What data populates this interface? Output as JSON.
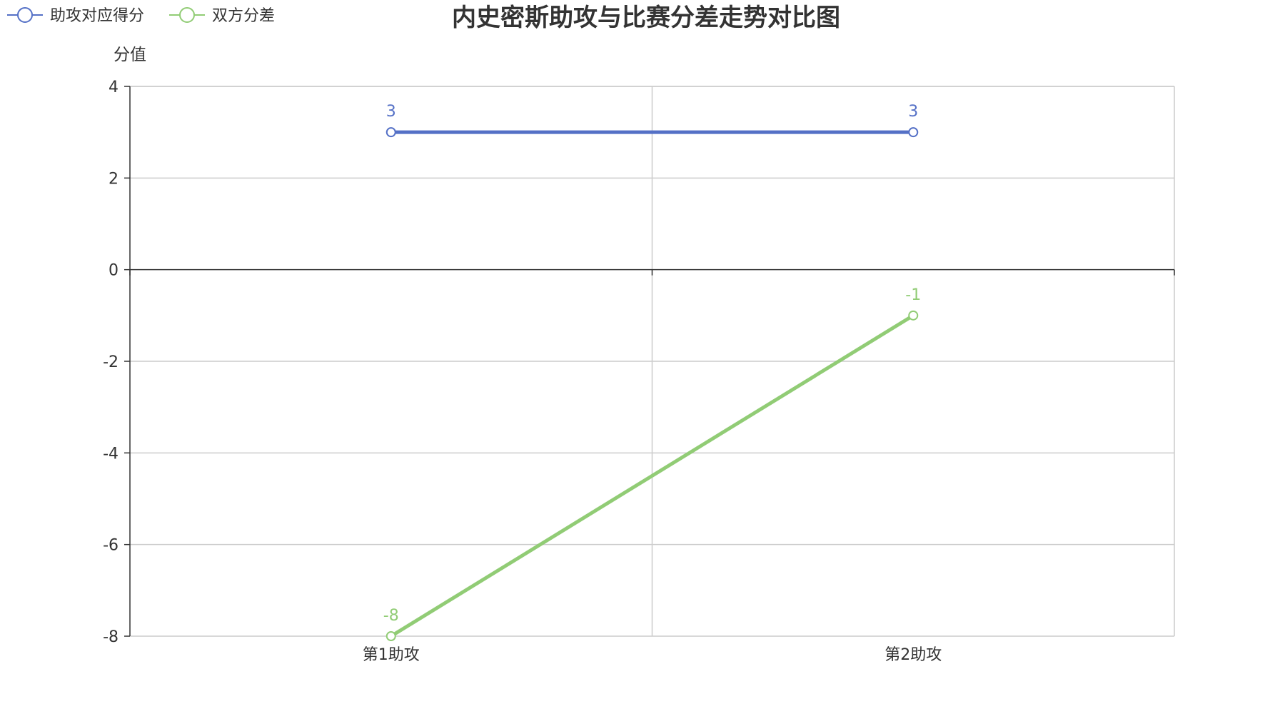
{
  "chart_data": {
    "type": "line",
    "title": "内史密斯助攻与比赛分差走势对比图",
    "ylabel": "分值",
    "xlabel": "",
    "categories": [
      "第1助攻",
      "第2助攻"
    ],
    "ylim": [
      -8,
      4
    ],
    "yticks": [
      4,
      2,
      0,
      -2,
      -4,
      -6,
      -8
    ],
    "grid": true,
    "legend_position": "top-left",
    "series": [
      {
        "name": "助攻对应得分",
        "values": [
          3,
          3
        ],
        "color": "#5470c6"
      },
      {
        "name": "双方分差",
        "values": [
          -8,
          -1
        ],
        "color": "#91cc75"
      }
    ]
  }
}
